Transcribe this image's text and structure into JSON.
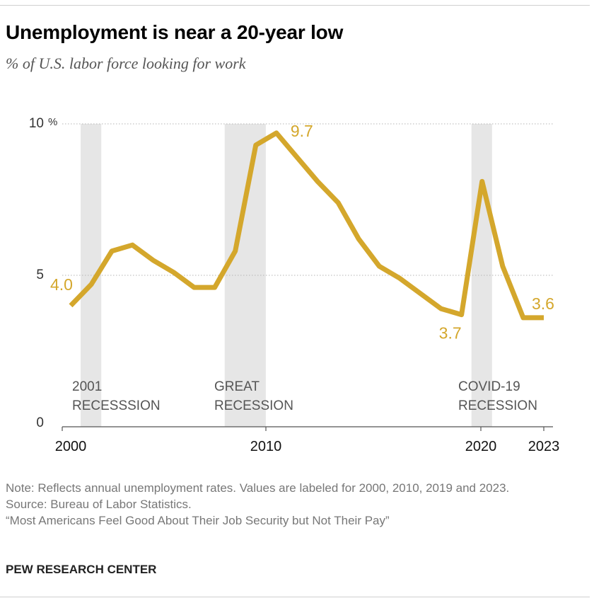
{
  "header": {
    "title": "Unemployment is near a 20-year low",
    "subtitle": "% of U.S. labor force looking for work"
  },
  "chart_data": {
    "type": "line",
    "title": "Unemployment is near a 20-year low",
    "subtitle": "% of U.S. labor force looking for work",
    "xlabel": "",
    "ylabel": "",
    "xlim": [
      2000,
      2023
    ],
    "ylim": [
      0,
      10
    ],
    "y_ticks": [
      {
        "value": 0,
        "label": "0"
      },
      {
        "value": 5,
        "label": "5"
      },
      {
        "value": 10,
        "label": "10"
      }
    ],
    "y_unit": "%",
    "x_ticks": [
      {
        "value": 2000,
        "label": "2000"
      },
      {
        "value": 2010,
        "label": "2010"
      },
      {
        "value": 2020,
        "label": "2020"
      },
      {
        "value": 2023,
        "label": "2023"
      }
    ],
    "grid": true,
    "line_color": "#d4a72c",
    "band_color": "#e6e6e6",
    "series": [
      {
        "x": [
          2000,
          2001,
          2002,
          2003,
          2004,
          2005,
          2006,
          2007,
          2008,
          2009,
          2010,
          2011,
          2012,
          2013,
          2014,
          2015,
          2016,
          2017,
          2018,
          2019,
          2020,
          2021,
          2022,
          2023
        ],
        "values": [
          4.0,
          4.7,
          5.8,
          6.0,
          5.5,
          5.1,
          4.6,
          4.6,
          5.8,
          9.3,
          9.7,
          8.9,
          8.1,
          7.4,
          6.2,
          5.3,
          4.9,
          4.4,
          3.9,
          3.7,
          8.1,
          5.3,
          3.6,
          3.6
        ]
      }
    ],
    "recessions": [
      {
        "start": 2001.0,
        "end": 2002.0,
        "label_lines": [
          "2001",
          "RECESSSION"
        ]
      },
      {
        "start": 2008.0,
        "end": 2010.0,
        "label_lines": [
          "GREAT",
          "RECESSION"
        ]
      },
      {
        "start": 2020.0,
        "end": 2021.0,
        "label_lines": [
          "COVID-19",
          "RECESSION"
        ]
      }
    ],
    "annotations": [
      {
        "x": 2000,
        "y": 4.0,
        "label": "4.0",
        "position": "above-left"
      },
      {
        "x": 2010,
        "y": 9.7,
        "label": "9.7",
        "position": "right"
      },
      {
        "x": 2019,
        "y": 3.7,
        "label": "3.7",
        "position": "below"
      },
      {
        "x": 2023,
        "y": 3.6,
        "label": "3.6",
        "position": "above"
      }
    ]
  },
  "footer": {
    "note": "Note: Reflects annual unemployment rates. Values are labeled for 2000, 2010, 2019 and 2023.",
    "source": "Source: Bureau of Labor Statistics.",
    "report": "“Most Americans Feel Good About Their Job Security but Not Their Pay”",
    "brand": "PEW RESEARCH CENTER"
  }
}
